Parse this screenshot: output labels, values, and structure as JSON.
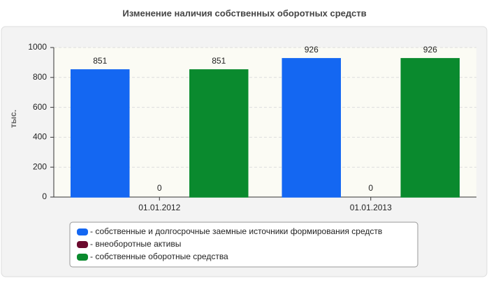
{
  "chart_data": {
    "type": "bar",
    "title": "Изменение наличия собственных оборотных средств",
    "y_label": "тыс.",
    "categories": [
      "01.01.2012",
      "01.01.2013"
    ],
    "series": [
      {
        "name": "- собственные и долгосрочные заемные источники формирования средств",
        "color": "#1467f2",
        "values": [
          851,
          926
        ]
      },
      {
        "name": "- внеоборотные активы",
        "color": "#6b0a2e",
        "values": [
          0,
          0
        ]
      },
      {
        "name": "- собственные оборотные средства",
        "color": "#0a8a2e",
        "values": [
          851,
          926
        ]
      }
    ],
    "ylim": [
      0,
      1000
    ],
    "yticks": [
      0,
      200,
      400,
      600,
      800,
      1000
    ],
    "grid": true
  }
}
